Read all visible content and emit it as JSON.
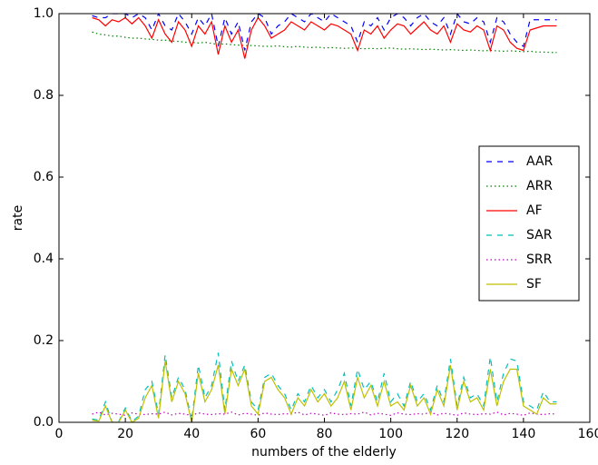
{
  "chart_data": {
    "type": "line",
    "xlabel": "numbers of the elderly",
    "ylabel": "rate",
    "x": [
      10,
      12,
      14,
      16,
      18,
      20,
      22,
      24,
      26,
      28,
      30,
      32,
      34,
      36,
      38,
      40,
      42,
      44,
      46,
      48,
      50,
      52,
      54,
      56,
      58,
      60,
      62,
      64,
      66,
      68,
      70,
      72,
      74,
      76,
      78,
      80,
      82,
      84,
      86,
      88,
      90,
      92,
      94,
      96,
      98,
      100,
      102,
      104,
      106,
      108,
      110,
      112,
      114,
      116,
      118,
      120,
      122,
      124,
      126,
      128,
      130,
      132,
      134,
      136,
      138,
      140,
      142,
      144,
      146,
      148,
      150
    ],
    "series": [
      {
        "name": "AAR",
        "color": "#0000ff",
        "linestyle": "dashed",
        "values": [
          0.995,
          0.99,
          0.99,
          1.0,
          1.0,
          1.0,
          0.99,
          1.0,
          0.99,
          0.96,
          1.0,
          0.97,
          0.96,
          1.0,
          0.98,
          0.95,
          0.99,
          0.97,
          1.0,
          0.92,
          0.99,
          0.95,
          0.98,
          0.91,
          0.98,
          1.0,
          0.99,
          0.95,
          0.97,
          0.98,
          1.0,
          0.99,
          0.98,
          1.0,
          0.99,
          0.98,
          1.0,
          0.99,
          0.98,
          0.97,
          0.93,
          0.98,
          0.97,
          0.99,
          0.96,
          0.99,
          1.0,
          0.99,
          0.97,
          0.99,
          1.0,
          0.98,
          0.97,
          0.99,
          0.95,
          1.0,
          0.98,
          0.975,
          0.99,
          0.98,
          0.93,
          0.99,
          0.98,
          0.95,
          0.93,
          0.92,
          0.985,
          0.985,
          0.985,
          0.985,
          0.985
        ]
      },
      {
        "name": "ARR",
        "color": "#008000",
        "linestyle": "dotted",
        "values": [
          0.955,
          0.95,
          0.948,
          0.945,
          0.945,
          0.942,
          0.94,
          0.94,
          0.938,
          0.937,
          0.935,
          0.935,
          0.933,
          0.932,
          0.93,
          0.93,
          0.928,
          0.93,
          0.927,
          0.925,
          0.926,
          0.924,
          0.923,
          0.922,
          0.922,
          0.921,
          0.92,
          0.92,
          0.921,
          0.919,
          0.918,
          0.92,
          0.918,
          0.917,
          0.918,
          0.916,
          0.917,
          0.916,
          0.915,
          0.916,
          0.915,
          0.914,
          0.915,
          0.914,
          0.915,
          0.916,
          0.914,
          0.913,
          0.914,
          0.913,
          0.912,
          0.913,
          0.912,
          0.911,
          0.912,
          0.911,
          0.91,
          0.911,
          0.91,
          0.909,
          0.91,
          0.909,
          0.908,
          0.909,
          0.908,
          0.907,
          0.908,
          0.906,
          0.906,
          0.905,
          0.905
        ]
      },
      {
        "name": "AF",
        "color": "#ff0000",
        "linestyle": "solid",
        "values": [
          0.99,
          0.985,
          0.97,
          0.985,
          0.98,
          0.99,
          0.975,
          0.99,
          0.97,
          0.94,
          0.985,
          0.95,
          0.93,
          0.98,
          0.96,
          0.92,
          0.97,
          0.95,
          0.98,
          0.9,
          0.97,
          0.93,
          0.96,
          0.89,
          0.96,
          0.99,
          0.97,
          0.94,
          0.95,
          0.96,
          0.98,
          0.97,
          0.96,
          0.98,
          0.97,
          0.96,
          0.975,
          0.97,
          0.96,
          0.95,
          0.91,
          0.96,
          0.95,
          0.97,
          0.94,
          0.96,
          0.975,
          0.97,
          0.95,
          0.965,
          0.98,
          0.96,
          0.95,
          0.97,
          0.93,
          0.975,
          0.96,
          0.955,
          0.97,
          0.96,
          0.91,
          0.97,
          0.96,
          0.93,
          0.915,
          0.91,
          0.96,
          0.965,
          0.97,
          0.97,
          0.97
        ]
      },
      {
        "name": "SAR",
        "color": "#00bfbf",
        "linestyle": "dashed",
        "values": [
          0.008,
          0.005,
          0.05,
          0.0,
          0.002,
          0.035,
          0.002,
          0.015,
          0.08,
          0.1,
          0.02,
          0.165,
          0.06,
          0.11,
          0.08,
          0.005,
          0.14,
          0.06,
          0.09,
          0.17,
          0.03,
          0.15,
          0.1,
          0.14,
          0.05,
          0.03,
          0.11,
          0.12,
          0.09,
          0.07,
          0.03,
          0.07,
          0.05,
          0.09,
          0.06,
          0.08,
          0.05,
          0.08,
          0.12,
          0.04,
          0.13,
          0.08,
          0.1,
          0.05,
          0.12,
          0.05,
          0.07,
          0.04,
          0.1,
          0.05,
          0.07,
          0.03,
          0.09,
          0.05,
          0.155,
          0.04,
          0.11,
          0.06,
          0.07,
          0.04,
          0.16,
          0.05,
          0.12,
          0.155,
          0.15,
          0.05,
          0.04,
          0.03,
          0.075,
          0.05,
          0.05
        ]
      },
      {
        "name": "SRR",
        "color": "#bf00bf",
        "linestyle": "dotted",
        "values": [
          0.02,
          0.025,
          0.018,
          0.022,
          0.02,
          0.017,
          0.023,
          0.02,
          0.019,
          0.021,
          0.02,
          0.025,
          0.018,
          0.022,
          0.02,
          0.017,
          0.023,
          0.02,
          0.019,
          0.021,
          0.02,
          0.025,
          0.018,
          0.022,
          0.02,
          0.017,
          0.023,
          0.02,
          0.019,
          0.021,
          0.02,
          0.025,
          0.018,
          0.022,
          0.02,
          0.017,
          0.023,
          0.02,
          0.019,
          0.021,
          0.02,
          0.025,
          0.018,
          0.022,
          0.02,
          0.017,
          0.023,
          0.02,
          0.019,
          0.021,
          0.02,
          0.025,
          0.018,
          0.022,
          0.02,
          0.017,
          0.023,
          0.02,
          0.019,
          0.021,
          0.02,
          0.025,
          0.018,
          0.022,
          0.02,
          0.017,
          0.023,
          0.02,
          0.019,
          0.021,
          0.02
        ]
      },
      {
        "name": "SF",
        "color": "#bfbf00",
        "linestyle": "solid",
        "values": [
          0.005,
          0.003,
          0.04,
          0.0,
          0.0,
          0.03,
          0.0,
          0.01,
          0.06,
          0.09,
          0.01,
          0.15,
          0.05,
          0.1,
          0.07,
          0.0,
          0.12,
          0.05,
          0.08,
          0.14,
          0.02,
          0.13,
          0.09,
          0.13,
          0.04,
          0.02,
          0.1,
          0.11,
          0.08,
          0.06,
          0.02,
          0.06,
          0.04,
          0.08,
          0.05,
          0.07,
          0.04,
          0.06,
          0.1,
          0.03,
          0.11,
          0.06,
          0.09,
          0.04,
          0.1,
          0.04,
          0.05,
          0.03,
          0.09,
          0.04,
          0.06,
          0.02,
          0.08,
          0.04,
          0.14,
          0.03,
          0.1,
          0.05,
          0.06,
          0.03,
          0.13,
          0.04,
          0.1,
          0.13,
          0.13,
          0.04,
          0.03,
          0.02,
          0.06,
          0.045,
          0.045
        ]
      }
    ],
    "xlim": [
      0,
      160
    ],
    "xticks": [
      0,
      20,
      40,
      60,
      80,
      100,
      120,
      140,
      160
    ],
    "ylim": [
      0,
      1
    ],
    "yticks": [
      {
        "value": 0,
        "label": "0.0"
      },
      0.2,
      0.4,
      0.6,
      0.8,
      {
        "value": 1,
        "label": "1.0"
      }
    ],
    "legend": "center right",
    "grid": false
  }
}
